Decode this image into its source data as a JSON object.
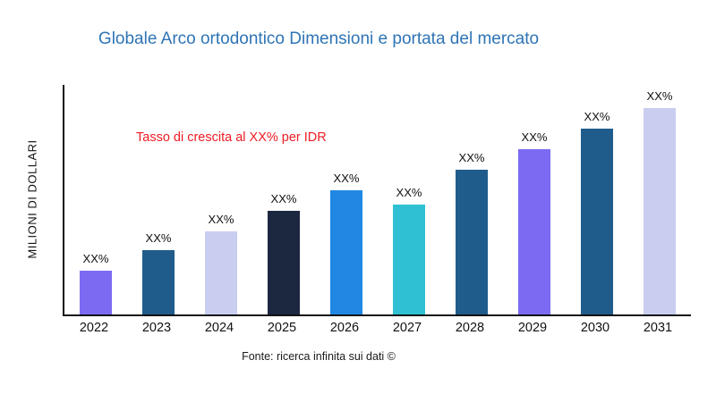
{
  "chart_data": {
    "type": "bar",
    "title": "Globale Arco ortodontico Dimensioni e portata del mercato",
    "ylabel": "MILIONI DI DOLLARI",
    "xlabel": "",
    "annotation": "Tasso di crescita al XX% per IDR",
    "source": "Fonte: ricerca infinita sui dati ©",
    "categories": [
      "2022",
      "2023",
      "2024",
      "2025",
      "2026",
      "2027",
      "2028",
      "2029",
      "2030",
      "2031"
    ],
    "values": [
      19,
      28,
      36,
      45,
      54,
      48,
      63,
      72,
      81,
      90
    ],
    "bar_labels": [
      "XX%",
      "XX%",
      "XX%",
      "XX%",
      "XX%",
      "XX%",
      "XX%",
      "XX%",
      "XX%",
      "XX%"
    ],
    "bar_colors": [
      "#7c6bf2",
      "#1f5c8b",
      "#c9cdf0",
      "#1c2740",
      "#2087e2",
      "#2fc1d3",
      "#1f5c8b",
      "#7c6bf2",
      "#1f5c8b",
      "#c9cdf0"
    ],
    "ylim": [
      0,
      100
    ],
    "grid": false,
    "legend_position": "none",
    "colors": {
      "title": "#2e74b5",
      "annotation": "#ec1c24",
      "axis": "#111111"
    }
  }
}
